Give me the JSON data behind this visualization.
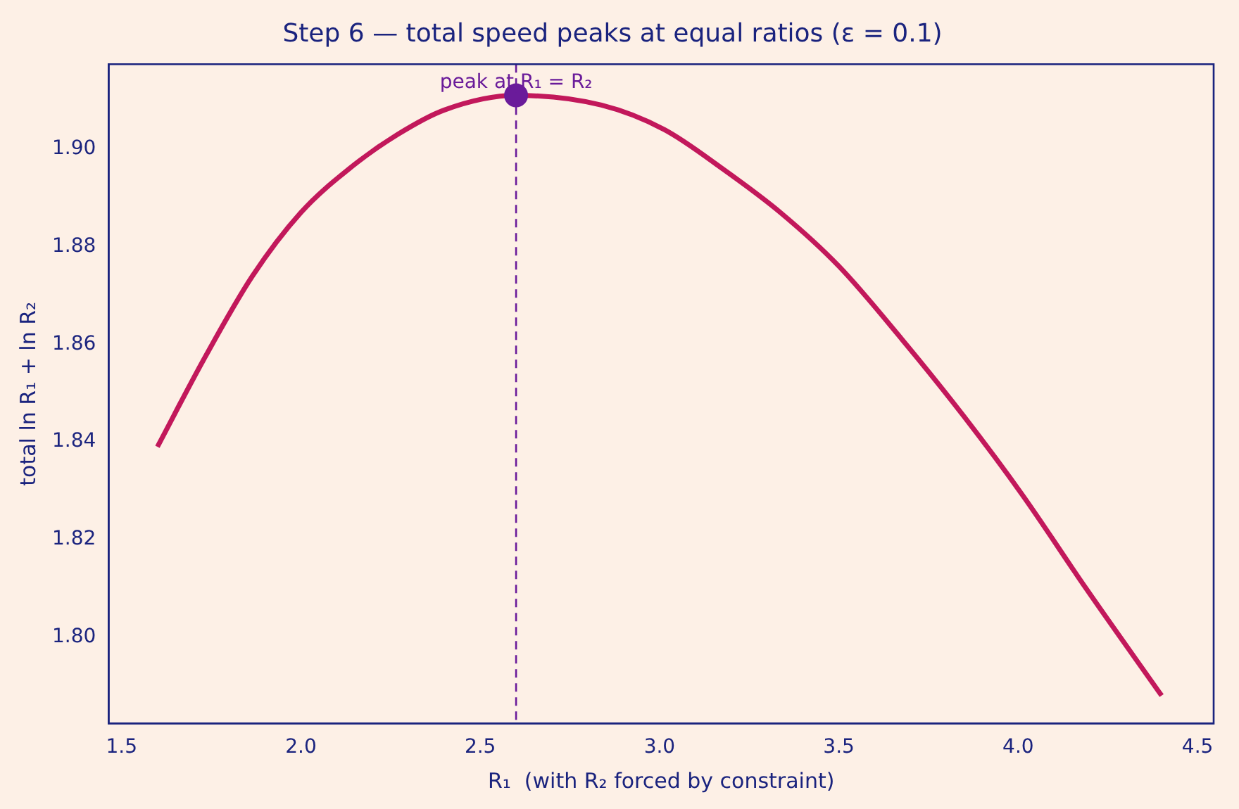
{
  "chart_data": {
    "type": "line",
    "title": "Step 6 — total speed peaks at equal ratios (ε = 0.1)",
    "xlabel": "R₁  (with R₂ forced by constraint)",
    "ylabel": "total ln R₁ + ln R₂",
    "xlim": [
      1.464,
      4.545
    ],
    "xticks": [
      {
        "value": 1.5,
        "label": "1.5"
      },
      {
        "value": 2,
        "label": "2.0"
      },
      {
        "value": 2.5,
        "label": "2.5"
      },
      {
        "value": 3,
        "label": "3.0"
      },
      {
        "value": 3.5,
        "label": "3.5"
      },
      {
        "value": 4,
        "label": "4.0"
      },
      {
        "value": 4.5,
        "label": "4.5"
      }
    ],
    "ylim": [
      1.7823,
      1.9174
    ],
    "yticks": [
      {
        "value": 1.8,
        "label": "1.80"
      },
      {
        "value": 1.82,
        "label": "1.82"
      },
      {
        "value": 1.84,
        "label": "1.84"
      },
      {
        "value": 1.86,
        "label": "1.86"
      },
      {
        "value": 1.88,
        "label": "1.88"
      },
      {
        "value": 1.9,
        "label": "1.90"
      }
    ],
    "grid": false,
    "legend": false,
    "series": [
      {
        "type": "line",
        "color": "#c2185b",
        "marker": "none",
        "line_style": "solid",
        "x": [
          1.6,
          1.73,
          1.865,
          2.0,
          2.135,
          2.27,
          2.4,
          2.6,
          2.838,
          3.013,
          3.175,
          3.337,
          3.5,
          3.676,
          3.851,
          4.013,
          4.189,
          4.4
        ],
        "values": [
          1.839,
          1.857,
          1.874,
          1.887,
          1.896,
          1.903,
          1.908,
          1.911,
          1.909,
          1.904,
          1.896,
          1.887,
          1.876,
          1.861,
          1.845,
          1.829,
          1.81,
          1.788
        ]
      },
      {
        "type": "scatter",
        "color": "#6a1b9a",
        "marker": "circle",
        "x": [
          2.6
        ],
        "values": [
          1.911
        ]
      }
    ],
    "ref_lines": [
      {
        "axis": "x",
        "value": 2.6,
        "color": "#6a1b9a",
        "line_style": "dashed"
      }
    ],
    "annotations": [
      {
        "text": "peak at R₁ = R₂",
        "x": 2.6,
        "y": 1.911
      }
    ]
  }
}
